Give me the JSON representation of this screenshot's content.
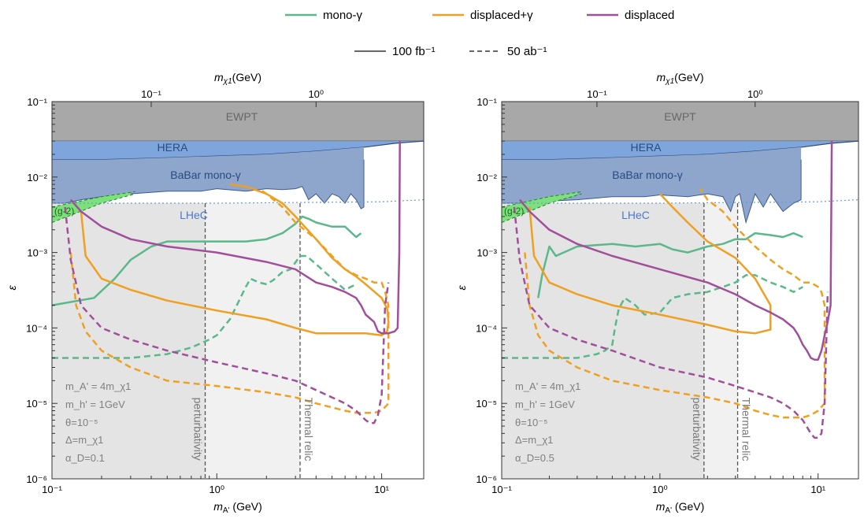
{
  "legend": {
    "series": [
      {
        "name": "mono-γ",
        "color": "#5bb88a"
      },
      {
        "name": "displaced+γ",
        "color": "#f0a020"
      },
      {
        "name": "displaced",
        "color": "#a0509a"
      }
    ],
    "linestyles": [
      {
        "name": "100 fb⁻¹",
        "style": "solid"
      },
      {
        "name": "50 ab⁻¹",
        "style": "dashed"
      }
    ]
  },
  "chart_data": [
    {
      "type": "line",
      "xscale": "log",
      "yscale": "log",
      "xlim": [
        0.1,
        18
      ],
      "ylim": [
        1e-06,
        0.1
      ],
      "xlabel": "m_A' (GeV)",
      "ylabel": "ε",
      "top_xlabel": "m_χ1(GeV)",
      "x_ticks": [
        "10⁻¹",
        "10⁰",
        "10¹"
      ],
      "top_ticks": [
        "10⁻¹",
        "10⁰"
      ],
      "y_ticks": [
        "10⁻⁶",
        "10⁻⁵",
        "10⁻⁴",
        "10⁻³",
        "10⁻²",
        "10⁻¹"
      ],
      "params": [
        "m_A' = 4m_χ1",
        "m_h' = 1GeV",
        "θ=10⁻⁵",
        "Δ=m_χ1",
        "α_D=0.1"
      ],
      "regions": {
        "ewpt": "EWPT",
        "hera": "HERA",
        "babar": "BaBar mono-γ",
        "lhec": "LHeC",
        "g2": "(g-2)"
      },
      "vlines": [
        {
          "x": 0.85,
          "label": "perturbativity"
        },
        {
          "x": 3.2,
          "label": "Thermal relic"
        }
      ],
      "series": [
        {
          "name": "mono-γ",
          "style": "solid",
          "x": [
            0.1,
            0.18,
            0.24,
            0.3,
            0.4,
            0.5,
            0.7,
            1,
            1.5,
            2,
            2.5,
            3,
            3.3,
            3.6,
            4,
            5,
            6,
            7,
            7.5
          ],
          "y": [
            0.0002,
            0.00025,
            0.00045,
            0.0008,
            0.0012,
            0.0014,
            0.0014,
            0.0014,
            0.0014,
            0.0015,
            0.0018,
            0.0024,
            0.003,
            0.0028,
            0.0025,
            0.0022,
            0.0022,
            0.0016,
            0.0018
          ]
        },
        {
          "name": "mono-γ",
          "style": "dashed",
          "x": [
            0.1,
            0.3,
            0.5,
            0.7,
            0.9,
            1,
            1.2,
            1.5,
            1.6,
            1.8,
            2,
            2.2,
            2.5,
            2.8,
            3.2,
            3.5,
            4,
            5,
            6,
            7
          ],
          "y": [
            4e-05,
            4e-05,
            4.5e-05,
            5.5e-05,
            7e-05,
            8e-05,
            0.00013,
            0.00035,
            0.00045,
            0.0004,
            0.00038,
            0.00043,
            0.00055,
            0.0006,
            0.0009,
            0.0009,
            0.0007,
            0.00045,
            0.00032,
            0.00038
          ]
        },
        {
          "name": "displaced+γ",
          "style": "solid",
          "x": [
            0.15,
            0.16,
            0.2,
            0.3,
            0.5,
            1,
            2,
            3,
            4,
            6,
            8,
            10,
            10.8,
            11,
            10.8,
            10,
            8,
            7,
            6,
            5,
            4,
            3,
            2.5,
            2,
            1.5,
            1.2
          ],
          "y": [
            0.0035,
            0.0009,
            0.00045,
            0.00032,
            0.00023,
            0.00017,
            0.00013,
            0.0001,
            8.5e-05,
            8.5e-05,
            8.5e-05,
            8e-05,
            9e-05,
            0.00012,
            0.00018,
            0.00025,
            0.00038,
            0.00048,
            0.0006,
            0.00085,
            0.0015,
            0.003,
            0.0045,
            0.006,
            0.0075,
            0.008
          ]
        },
        {
          "name": "displaced+γ",
          "style": "dashed",
          "x": [
            0.13,
            0.14,
            0.16,
            0.2,
            0.3,
            0.5,
            1,
            2,
            3,
            4,
            6,
            7,
            8,
            9,
            10,
            11,
            11,
            10.5,
            10,
            9,
            8,
            7,
            6,
            5,
            4,
            3,
            2.5,
            2,
            1.8
          ],
          "y": [
            0.001,
            0.0002,
            9e-05,
            5e-05,
            3e-05,
            2e-05,
            1.7e-05,
            1.4e-05,
            1.2e-05,
            1e-05,
            8e-06,
            7.5e-06,
            7.5e-06,
            7.5e-06,
            8e-06,
            1e-05,
            0.0002,
            0.0003,
            0.0004,
            0.0004,
            0.00045,
            0.0005,
            0.0006,
            0.0009,
            0.0015,
            0.0025,
            0.004,
            0.006,
            0.007
          ]
        },
        {
          "name": "displaced",
          "style": "solid",
          "x": [
            0.13,
            0.15,
            0.2,
            0.3,
            0.5,
            1,
            2,
            3,
            4,
            5,
            6,
            7,
            7.5,
            8,
            9,
            9.5,
            10,
            11,
            12,
            12.5,
            12.8,
            12.9
          ],
          "y": [
            0.005,
            0.0035,
            0.0022,
            0.0015,
            0.0012,
            0.001,
            0.00075,
            0.0006,
            0.0004,
            0.00035,
            0.0003,
            0.00025,
            0.0002,
            0.00015,
            0.00012,
            9e-05,
            8.5e-05,
            8.5e-05,
            9e-05,
            0.0001,
            0.001,
            0.03
          ]
        },
        {
          "name": "displaced",
          "style": "dashed",
          "x": [
            0.12,
            0.13,
            0.15,
            0.2,
            0.3,
            0.5,
            1,
            2,
            3,
            4,
            5,
            6,
            7,
            8,
            8.5,
            9,
            9.5,
            10,
            10.5,
            11
          ],
          "y": [
            0.004,
            0.0008,
            0.0002,
            0.0001,
            7e-05,
            5e-05,
            3.5e-05,
            2.5e-05,
            2e-05,
            1.5e-05,
            1.2e-05,
            1e-05,
            8e-06,
            6e-06,
            5.5e-06,
            5.5e-06,
            7e-06,
            1.3e-05,
            0.0002,
            0.0004
          ]
        }
      ]
    },
    {
      "type": "line",
      "xscale": "log",
      "yscale": "log",
      "xlim": [
        0.1,
        18
      ],
      "ylim": [
        1e-06,
        0.1
      ],
      "xlabel": "m_A' (GeV)",
      "ylabel": "ε",
      "top_xlabel": "m_χ1(GeV)",
      "x_ticks": [
        "10⁻¹",
        "10⁰",
        "10¹"
      ],
      "top_ticks": [
        "10⁻¹",
        "10⁰"
      ],
      "y_ticks": [
        "10⁻⁶",
        "10⁻⁵",
        "10⁻⁴",
        "10⁻³",
        "10⁻²",
        "10⁻¹"
      ],
      "params": [
        "m_A' = 4m_χ1",
        "m_h' = 1GeV",
        "θ=10⁻⁵",
        "Δ=m_χ1",
        "α_D=0.5"
      ],
      "regions": {
        "ewpt": "EWPT",
        "hera": "HERA",
        "babar": "BaBar mono-γ",
        "lhec": "LHeC",
        "g2": "(g-2)"
      },
      "vlines": [
        {
          "x": 1.9,
          "label": "perturbativity"
        },
        {
          "x": 3.1,
          "label": "Thermal relic"
        }
      ],
      "series": [
        {
          "name": "mono-γ",
          "style": "solid",
          "x": [
            0.17,
            0.18,
            0.2,
            0.22,
            0.3,
            0.5,
            0.7,
            1,
            1.2,
            1.5,
            2,
            2.5,
            3,
            3.5,
            4,
            5,
            6,
            7,
            8
          ],
          "y": [
            0.00025,
            0.0005,
            0.0012,
            0.0009,
            0.0012,
            0.0013,
            0.0012,
            0.0013,
            0.0011,
            0.001,
            0.0012,
            0.0013,
            0.0015,
            0.0015,
            0.0018,
            0.0017,
            0.0016,
            0.0018,
            0.0016
          ]
        },
        {
          "name": "mono-γ",
          "style": "dashed",
          "x": [
            0.1,
            0.3,
            0.4,
            0.45,
            0.5,
            0.52,
            0.55,
            0.6,
            0.7,
            0.8,
            1,
            1.2,
            1.5,
            2,
            2.5,
            3,
            3.5,
            4,
            5,
            6,
            7,
            8
          ],
          "y": [
            4e-05,
            4e-05,
            4.5e-05,
            5e-05,
            6e-05,
            0.0001,
            0.00018,
            0.00025,
            0.0002,
            0.00015,
            0.00016,
            0.00025,
            0.00028,
            0.0003,
            0.00035,
            0.0004,
            0.0005,
            0.0005,
            0.0004,
            0.00035,
            0.0003,
            0.00035
          ]
        },
        {
          "name": "displaced+γ",
          "style": "solid",
          "x": [
            0.15,
            0.16,
            0.2,
            0.3,
            0.5,
            1,
            2,
            3,
            4,
            5,
            5,
            4,
            3,
            2,
            1.5,
            1.2,
            1
          ],
          "y": [
            0.004,
            0.0009,
            0.0004,
            0.00028,
            0.0002,
            0.00015,
            0.00011,
            9e-05,
            8.5e-05,
            9.5e-05,
            0.0002,
            0.00045,
            0.00085,
            0.0014,
            0.0025,
            0.004,
            0.006
          ]
        },
        {
          "name": "displaced+γ",
          "style": "dashed",
          "x": [
            0.14,
            0.15,
            0.17,
            0.2,
            0.3,
            0.5,
            1,
            2,
            3,
            4,
            5,
            6,
            7,
            8,
            9,
            10,
            11,
            11,
            10.5,
            10,
            9,
            8,
            7,
            6,
            5,
            4,
            3,
            2.5,
            2,
            1.8
          ],
          "y": [
            0.001,
            0.0002,
            8e-05,
            5e-05,
            3e-05,
            2e-05,
            1.5e-05,
            1.2e-05,
            1e-05,
            8e-06,
            7e-06,
            6.5e-06,
            6.5e-06,
            6.5e-06,
            7e-06,
            8e-06,
            1e-05,
            0.0002,
            0.0003,
            0.00035,
            0.0004,
            0.0004,
            0.0005,
            0.0006,
            0.0008,
            0.0012,
            0.0022,
            0.0035,
            0.005,
            0.007
          ]
        },
        {
          "name": "displaced",
          "style": "solid",
          "x": [
            0.13,
            0.15,
            0.2,
            0.3,
            0.5,
            1,
            2,
            3,
            4,
            5,
            6,
            7,
            7.5,
            8,
            8.5,
            9,
            9.5,
            10,
            10.5,
            11,
            11.5,
            12,
            12.2
          ],
          "y": [
            0.005,
            0.0035,
            0.002,
            0.0013,
            0.0009,
            0.0006,
            0.0004,
            0.00028,
            0.0002,
            0.00016,
            0.00013,
            0.0001,
            8e-05,
            6e-05,
            5e-05,
            4e-05,
            3.8e-05,
            3.8e-05,
            5e-05,
            8e-05,
            0.00012,
            0.0002,
            0.03
          ]
        },
        {
          "name": "displaced",
          "style": "dashed",
          "x": [
            0.12,
            0.13,
            0.15,
            0.2,
            0.3,
            0.5,
            1,
            2,
            3,
            4,
            5,
            6,
            7,
            8,
            9,
            9.5,
            10,
            10.5,
            11,
            11.5
          ],
          "y": [
            0.004,
            0.0008,
            0.0002,
            0.0001,
            7e-05,
            5e-05,
            3e-05,
            2.2e-05,
            1.7e-05,
            1.4e-05,
            1.2e-05,
            1e-05,
            8e-06,
            6e-06,
            4e-06,
            3.5e-06,
            3.5e-06,
            4e-06,
            1e-05,
            0.0003
          ]
        }
      ]
    }
  ]
}
